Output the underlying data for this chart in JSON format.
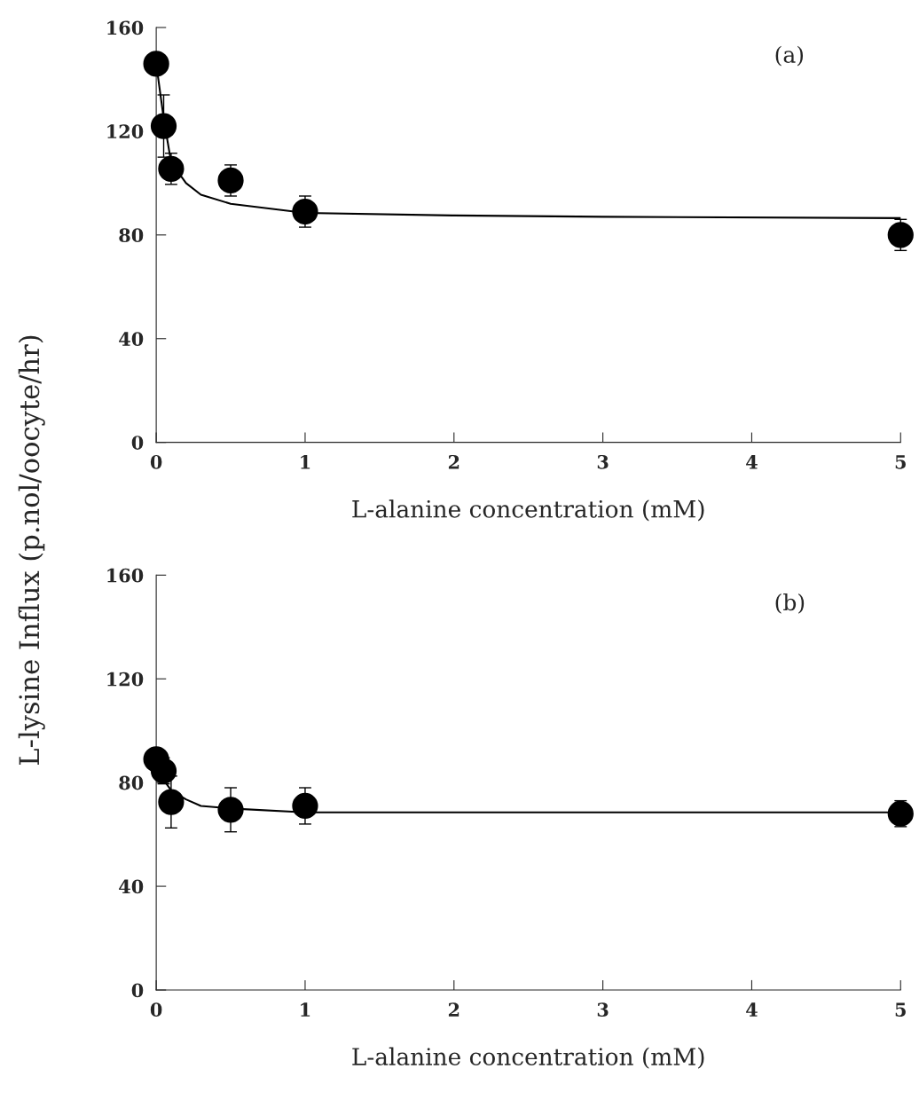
{
  "chart_data": [
    {
      "type": "scatter",
      "xlabel": "L-alanine concentration (mM)",
      "ylabel": "L-lysine Influx (p.nol/oocyte/hr)",
      "annotations": [
        "(a)"
      ],
      "xlim": [
        0,
        5
      ],
      "ylim": [
        0,
        160
      ],
      "xticks": [
        0,
        1,
        2,
        3,
        4,
        5
      ],
      "yticks": [
        0,
        40,
        80,
        120,
        160
      ],
      "grid": false,
      "marker": "circle",
      "series": [
        {
          "color": "#000000",
          "x": [
            0,
            0.05,
            0.1,
            0.5,
            1,
            5
          ],
          "values": [
            146,
            122,
            105.5,
            101,
            89,
            80
          ],
          "errors": [
            null,
            12,
            6,
            6,
            6,
            6
          ]
        },
        {
          "type": "line",
          "color": "#000000",
          "line_style": "solid",
          "marker": "none",
          "x": [
            0,
            0.05,
            0.1,
            0.2,
            0.3,
            0.5,
            1,
            2,
            3,
            5
          ],
          "values": [
            146,
            125,
            108,
            100,
            95.5,
            92,
            88.5,
            87.5,
            87,
            86.5
          ]
        }
      ]
    },
    {
      "type": "scatter",
      "xlabel": "L-alanine concentration (mM)",
      "annotations": [
        "(b)"
      ],
      "xlim": [
        0,
        5
      ],
      "ylim": [
        0,
        160
      ],
      "xticks": [
        0,
        1,
        2,
        3,
        4,
        5
      ],
      "yticks": [
        0,
        40,
        80,
        120,
        160
      ],
      "grid": false,
      "marker": "circle",
      "series": [
        {
          "color": "#000000",
          "x": [
            0,
            0.05,
            0.1,
            0.5,
            1,
            5
          ],
          "values": [
            89,
            84.5,
            72.5,
            69.5,
            71,
            68
          ],
          "errors": [
            4,
            5,
            10,
            8.5,
            7,
            5
          ]
        },
        {
          "type": "line",
          "color": "#000000",
          "line_style": "solid",
          "marker": "none",
          "x": [
            0,
            0.1,
            0.2,
            0.3,
            0.5,
            1,
            5
          ],
          "values": [
            85,
            77,
            73.5,
            71,
            70,
            68.5,
            68.5
          ]
        }
      ]
    }
  ]
}
